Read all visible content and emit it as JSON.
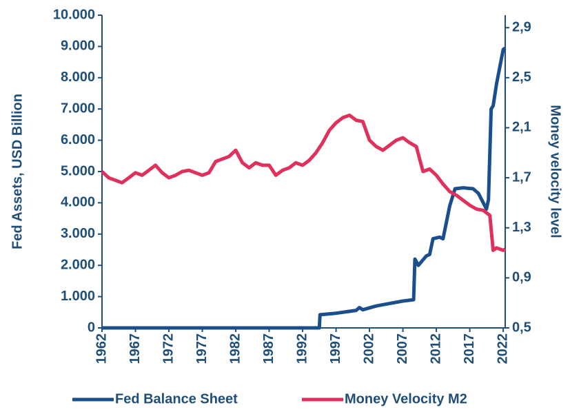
{
  "chart_data": {
    "type": "line",
    "y_label": "Fed Assets, USD Billion",
    "y2_label": "Money velocity level",
    "xlim": [
      1962,
      2022.3
    ],
    "xticks": [
      1962,
      1967,
      1972,
      1977,
      1982,
      1987,
      1992,
      1997,
      2002,
      2007,
      2012,
      2017,
      2022
    ],
    "ylim": [
      0,
      10000
    ],
    "yticks": [
      0,
      {
        "value": 1000,
        "label": "1.000"
      },
      {
        "value": 2000,
        "label": "2.000"
      },
      {
        "value": 3000,
        "label": "3.000"
      },
      {
        "value": 4000,
        "label": "4.000"
      },
      {
        "value": 5000,
        "label": "5.000"
      },
      {
        "value": 6000,
        "label": "6.000"
      },
      {
        "value": 7000,
        "label": "7.000"
      },
      {
        "value": 8000,
        "label": "8.000"
      },
      {
        "value": 9000,
        "label": "9.000"
      },
      {
        "value": 10000,
        "label": "10.000"
      }
    ],
    "y2lim": [
      0.5,
      3.0
    ],
    "y2ticks": [
      {
        "value": 0.5,
        "label": "0,5"
      },
      {
        "value": 0.9,
        "label": "0,9"
      },
      {
        "value": 1.3,
        "label": "1,3"
      },
      {
        "value": 1.7,
        "label": "1,7"
      },
      {
        "value": 2.1,
        "label": "2,1"
      },
      {
        "value": 2.5,
        "label": "2,5"
      },
      {
        "value": 2.9,
        "label": "2,9"
      }
    ],
    "series": [
      {
        "name": "Fed Balance Sheet",
        "color": "#1a4f8c",
        "x": [
          1962,
          1994.5,
          1994.6,
          1997,
          2000,
          2000.5,
          2001,
          2003,
          2005,
          2007,
          2008.6,
          2008.8,
          2009.3,
          2010.5,
          2011,
          2011.5,
          2012.5,
          2013,
          2014,
          2014.8,
          2016,
          2017.5,
          2018.3,
          2019.5,
          2019.8,
          2020.2,
          2020.5,
          2021,
          2022,
          2022.3
        ],
        "values": [
          0,
          0,
          420,
          470,
          560,
          650,
          580,
          700,
          780,
          860,
          900,
          2200,
          2000,
          2300,
          2350,
          2850,
          2900,
          2850,
          3900,
          4450,
          4480,
          4450,
          4300,
          3800,
          4100,
          7000,
          7100,
          7800,
          8900,
          8950
        ]
      },
      {
        "name": "Money Velocity M2",
        "color": "#e0315c",
        "axis": "y2",
        "x": [
          1962,
          1963,
          1964,
          1965,
          1966,
          1967,
          1968,
          1969,
          1970,
          1971,
          1972,
          1973,
          1974,
          1975,
          1976,
          1977,
          1978,
          1979,
          1980,
          1981,
          1982,
          1983,
          1984,
          1985,
          1986,
          1987,
          1988,
          1989,
          1990,
          1991,
          1992,
          1993,
          1994,
          1995,
          1996,
          1997,
          1998,
          1999,
          2000,
          2001,
          2002,
          2003,
          2004,
          2005,
          2006,
          2007,
          2008,
          2009,
          2010,
          2011,
          2012,
          2013,
          2014,
          2015,
          2016,
          2017,
          2018,
          2019,
          2020,
          2020.5,
          2021,
          2022,
          2022.3
        ],
        "values": [
          1.75,
          1.7,
          1.68,
          1.66,
          1.7,
          1.74,
          1.72,
          1.76,
          1.8,
          1.74,
          1.7,
          1.72,
          1.75,
          1.76,
          1.74,
          1.72,
          1.74,
          1.83,
          1.85,
          1.87,
          1.92,
          1.82,
          1.78,
          1.82,
          1.8,
          1.8,
          1.72,
          1.76,
          1.78,
          1.82,
          1.8,
          1.84,
          1.9,
          1.98,
          2.08,
          2.14,
          2.18,
          2.2,
          2.16,
          2.15,
          2.0,
          1.95,
          1.92,
          1.96,
          2.0,
          2.02,
          1.98,
          1.95,
          1.75,
          1.77,
          1.72,
          1.65,
          1.59,
          1.56,
          1.52,
          1.48,
          1.45,
          1.44,
          1.4,
          1.12,
          1.14,
          1.12,
          1.13
        ]
      }
    ]
  }
}
